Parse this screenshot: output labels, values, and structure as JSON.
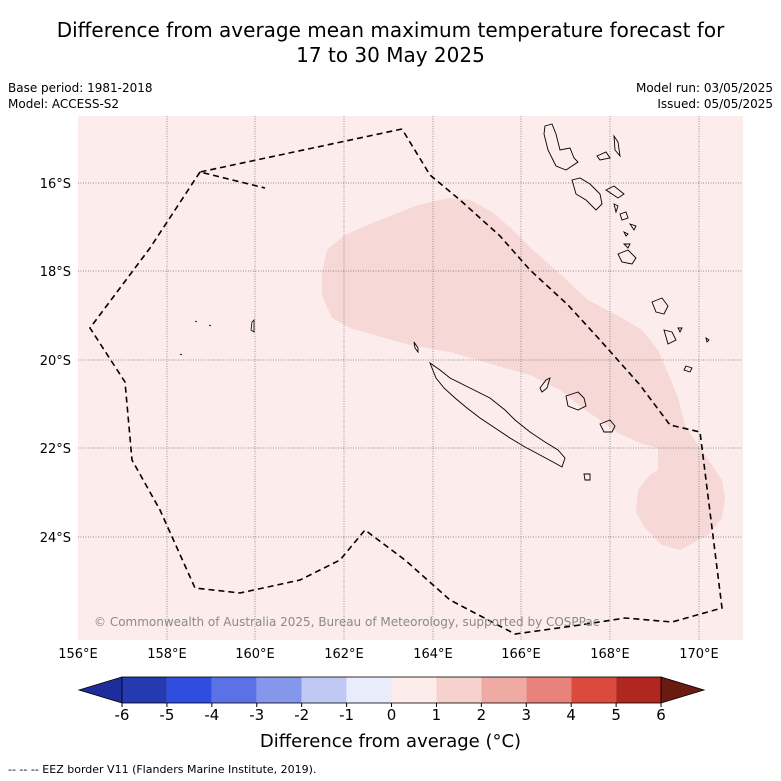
{
  "title_line1": "Difference from average mean maximum temperature forecast for",
  "title_line2": "17 to 30 May 2025",
  "base_period": "Base period: 1981-2018",
  "model": "Model: ACCESS-S2",
  "model_run": "Model run: 03/05/2025",
  "issued": "Issued: 05/05/2025",
  "copyright": "© Commonwealth of Australia 2025, Bureau of Meteorology, supported by COSPPac",
  "lon_labels": [
    "156°E",
    "158°E",
    "160°E",
    "162°E",
    "164°E",
    "166°E",
    "168°E",
    "170°E"
  ],
  "lat_labels": [
    "16°S",
    "18°S",
    "20°S",
    "22°S",
    "24°S"
  ],
  "colorbar": {
    "ticks": [
      "-6",
      "-5",
      "-4",
      "-3",
      "-2",
      "-1",
      "0",
      "1",
      "2",
      "3",
      "4",
      "5",
      "6"
    ],
    "colors": [
      "#1e2d9c",
      "#233ab0",
      "#2f4ee0",
      "#5a72e6",
      "#8597eb",
      "#c0c8f4",
      "#e9edfb",
      "#fdecea",
      "#f7d2cd",
      "#efaaa3",
      "#e7837a",
      "#dc4a3e",
      "#b0271f",
      "#6b1a12"
    ],
    "label": "Difference from average (°C)"
  },
  "map": {
    "background_color": "#fceceb",
    "anomaly_region_color": "#f6d8d6",
    "anomaly_region_category": "1 to 2 °C above average"
  },
  "footer": "--  --  -- EEZ border V11 (Flanders Marine Institute, 2019)."
}
